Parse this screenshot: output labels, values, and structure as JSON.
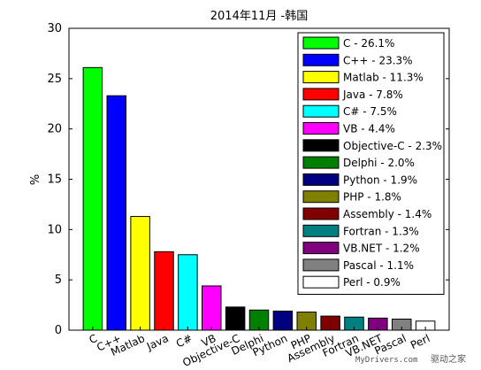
{
  "chart_data": {
    "type": "bar",
    "title": "2014年11月 -韩国",
    "xlabel": "",
    "ylabel": "%",
    "ylim": [
      0,
      30
    ],
    "yticks": [
      0,
      5,
      10,
      15,
      20,
      25,
      30
    ],
    "grid": false,
    "legend_position": "top-right",
    "categories": [
      "C",
      "C++",
      "Matlab",
      "Java",
      "C#",
      "VB",
      "Objective-C",
      "Delphi",
      "Python",
      "PHP",
      "Assembly",
      "Fortran",
      "VB.NET",
      "Pascal",
      "Perl"
    ],
    "values": [
      26.1,
      23.3,
      11.3,
      7.8,
      7.5,
      4.4,
      2.3,
      2.0,
      1.9,
      1.8,
      1.4,
      1.3,
      1.2,
      1.1,
      0.9
    ],
    "colors": [
      "#00ff00",
      "#0000ff",
      "#ffff00",
      "#ff0000",
      "#00ffff",
      "#ff00ff",
      "#000000",
      "#008000",
      "#000080",
      "#808000",
      "#800000",
      "#008080",
      "#800080",
      "#808080",
      "#ffffff"
    ],
    "legend": [
      "C - 26.1%",
      "C++ - 23.3%",
      "Matlab - 11.3%",
      "Java - 7.8%",
      "C# - 7.5%",
      "VB - 4.4%",
      "Objective-C - 2.3%",
      "Delphi - 2.0%",
      "Python - 1.9%",
      "PHP - 1.8%",
      "Assembly - 1.4%",
      "Fortran - 1.3%",
      "VB.NET - 1.2%",
      "Pascal - 1.1%",
      "Perl - 0.9%"
    ]
  },
  "watermark": {
    "site": "MyDrivers.com",
    "name": "驱动之家"
  }
}
